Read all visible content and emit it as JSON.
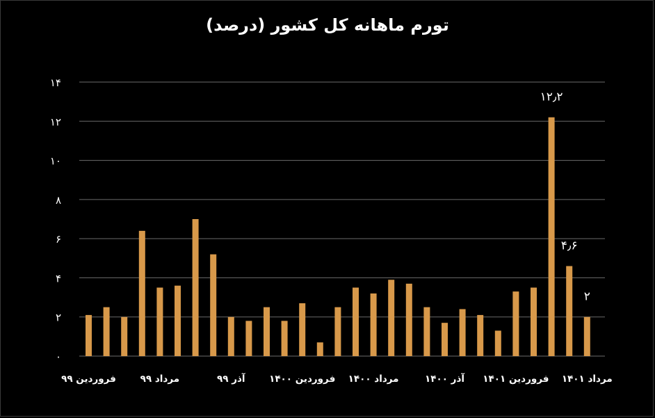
{
  "chart_data": {
    "type": "bar",
    "title": "تورم ماهانه کل کشور (درصد)",
    "xlabel": "",
    "ylabel": "",
    "ylim": [
      0,
      14
    ],
    "yticks": [
      {
        "value": 0,
        "label": "۰"
      },
      {
        "value": 2,
        "label": "۲"
      },
      {
        "value": 4,
        "label": "۴"
      },
      {
        "value": 6,
        "label": "۶"
      },
      {
        "value": 8,
        "label": "۸"
      },
      {
        "value": 10,
        "label": "۱۰"
      },
      {
        "value": 12,
        "label": "۱۲"
      },
      {
        "value": 14,
        "label": "۱۴"
      }
    ],
    "grid": true,
    "legend": "none",
    "bar_color": "#D8994A",
    "values": [
      2.1,
      2.5,
      2.0,
      6.4,
      3.5,
      3.6,
      7.0,
      5.2,
      2.0,
      1.8,
      2.5,
      1.8,
      2.7,
      0.7,
      2.5,
      3.5,
      3.2,
      3.9,
      3.7,
      2.5,
      1.7,
      2.4,
      2.1,
      1.3,
      3.3,
      3.5,
      12.2,
      4.6,
      2.0
    ],
    "x_tick_labels": [
      {
        "index": 1,
        "label": "فروردین ۹۹"
      },
      {
        "index": 5,
        "label": "مرداد ۹۹"
      },
      {
        "index": 9,
        "label": "آذر ۹۹"
      },
      {
        "index": 13,
        "label": "فروردین ۱۴۰۰"
      },
      {
        "index": 17,
        "label": "مرداد ۱۴۰۰"
      },
      {
        "index": 21,
        "label": "آذر ۱۴۰۰"
      },
      {
        "index": 25,
        "label": "فروردین ۱۴۰۱"
      },
      {
        "index": 29,
        "label": "مرداد ۱۴۰۱"
      }
    ],
    "data_labels": [
      {
        "index": 27,
        "label": "۱۲٫۲"
      },
      {
        "index": 28,
        "label": "۴٫۶"
      },
      {
        "index": 29,
        "label": "۲"
      }
    ]
  }
}
